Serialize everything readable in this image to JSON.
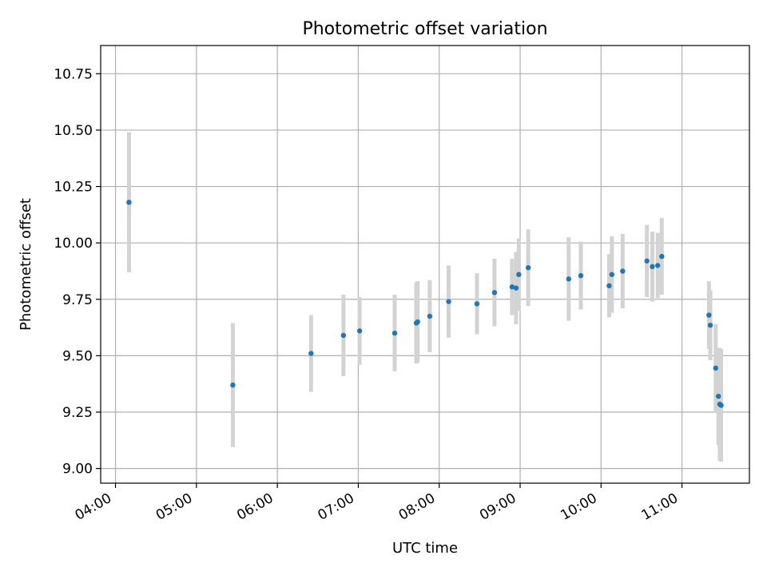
{
  "chart_data": {
    "type": "scatter",
    "title": "Photometric offset variation",
    "xlabel": "UTC time",
    "ylabel": "Photometric offset",
    "x_type": "time",
    "xlim": [
      "03:49",
      "11:50"
    ],
    "ylim": [
      8.935,
      10.875
    ],
    "x_ticks": [
      "04:00",
      "05:00",
      "06:00",
      "07:00",
      "08:00",
      "09:00",
      "10:00",
      "11:00"
    ],
    "y_ticks": [
      9.0,
      9.25,
      9.5,
      9.75,
      10.0,
      10.25,
      10.5,
      10.75
    ],
    "grid": true,
    "colors": {
      "point": "#1f77b4",
      "errorbar": "#d3d3d3",
      "grid": "#b0b0b0"
    },
    "points": [
      {
        "t": "04:10",
        "y": 10.18,
        "err": 0.31
      },
      {
        "t": "05:27",
        "y": 9.37,
        "err": 0.275
      },
      {
        "t": "06:25",
        "y": 9.51,
        "err": 0.17
      },
      {
        "t": "06:49",
        "y": 9.59,
        "err": 0.18
      },
      {
        "t": "07:01",
        "y": 9.61,
        "err": 0.15
      },
      {
        "t": "07:27",
        "y": 9.6,
        "err": 0.17
      },
      {
        "t": "07:43",
        "y": 9.645,
        "err": 0.18
      },
      {
        "t": "07:44",
        "y": 9.65,
        "err": 0.18
      },
      {
        "t": "07:53",
        "y": 9.675,
        "err": 0.16
      },
      {
        "t": "08:07",
        "y": 9.74,
        "err": 0.16
      },
      {
        "t": "08:28",
        "y": 9.73,
        "err": 0.135
      },
      {
        "t": "08:41",
        "y": 9.78,
        "err": 0.15
      },
      {
        "t": "08:54",
        "y": 9.805,
        "err": 0.125
      },
      {
        "t": "08:57",
        "y": 9.8,
        "err": 0.16
      },
      {
        "t": "08:59",
        "y": 9.86,
        "err": 0.16
      },
      {
        "t": "09:06",
        "y": 9.89,
        "err": 0.17
      },
      {
        "t": "09:36",
        "y": 9.84,
        "err": 0.185
      },
      {
        "t": "09:45",
        "y": 9.855,
        "err": 0.15
      },
      {
        "t": "10:06",
        "y": 9.81,
        "err": 0.14
      },
      {
        "t": "10:08",
        "y": 9.86,
        "err": 0.17
      },
      {
        "t": "10:16",
        "y": 9.875,
        "err": 0.165
      },
      {
        "t": "10:34",
        "y": 9.92,
        "err": 0.16
      },
      {
        "t": "10:38",
        "y": 9.895,
        "err": 0.155
      },
      {
        "t": "10:42",
        "y": 9.9,
        "err": 0.145
      },
      {
        "t": "10:45",
        "y": 9.94,
        "err": 0.17
      },
      {
        "t": "11:20",
        "y": 9.68,
        "err": 0.15
      },
      {
        "t": "11:21",
        "y": 9.635,
        "err": 0.155
      },
      {
        "t": "11:25",
        "y": 9.445,
        "err": 0.195
      },
      {
        "t": "11:27",
        "y": 9.32,
        "err": 0.215
      },
      {
        "t": "11:28",
        "y": 9.285,
        "err": 0.25
      },
      {
        "t": "11:29",
        "y": 9.28,
        "err": 0.25
      }
    ]
  }
}
